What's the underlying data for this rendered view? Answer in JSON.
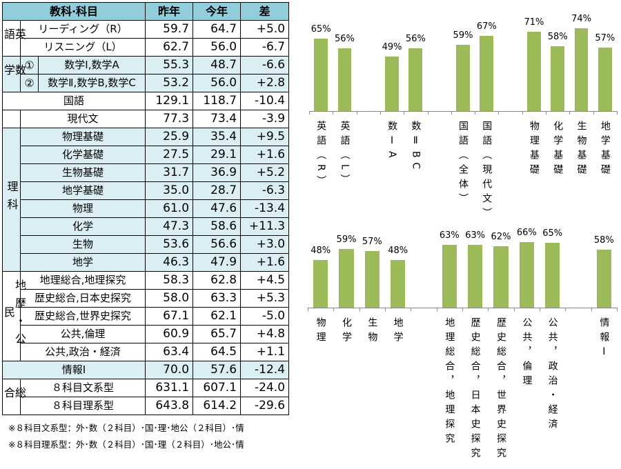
{
  "table": {
    "headers": {
      "subject": "教科·科目",
      "prev": "昨年",
      "curr": "今年",
      "diff": "差"
    },
    "header_fill": "#92CDDC",
    "groups": [
      {
        "label": "英語",
        "fill": "#FFFFFF",
        "rows": [
          {
            "subject": "リーディング（R）",
            "prev": "59.7",
            "curr": "64.7",
            "diff": "+5.0"
          },
          {
            "subject": "リスニング（L）",
            "prev": "62.7",
            "curr": "56.0",
            "diff": "-6.7"
          }
        ]
      },
      {
        "label": "数学",
        "fill": "#DAEEF3",
        "rows": [
          {
            "num": "①",
            "subject": "数学Ⅰ,数学A",
            "prev": "55.3",
            "curr": "48.7",
            "diff": "-6.6"
          },
          {
            "num": "②",
            "subject": "数学Ⅱ,数学B,数学C",
            "prev": "53.2",
            "curr": "56.0",
            "diff": "+2.8"
          }
        ]
      },
      {
        "label": "",
        "fill": "#FFFFFF",
        "rows": [
          {
            "subject": "国語",
            "prev": "129.1",
            "curr": "118.7",
            "diff": "-10.4"
          },
          {
            "subject": "現代文",
            "prev": "77.3",
            "curr": "73.4",
            "diff": "-3.9"
          }
        ]
      },
      {
        "label": "理科",
        "fill": "#DAEEF3",
        "rows": [
          {
            "subject": "物理基礎",
            "prev": "25.9",
            "curr": "35.4",
            "diff": "+9.5"
          },
          {
            "subject": "化学基礎",
            "prev": "27.5",
            "curr": "29.1",
            "diff": "+1.6"
          },
          {
            "subject": "生物基礎",
            "prev": "31.7",
            "curr": "36.9",
            "diff": "+5.2"
          },
          {
            "subject": "地学基礎",
            "prev": "35.0",
            "curr": "28.7",
            "diff": "-6.3"
          },
          {
            "subject": "物理",
            "prev": "61.0",
            "curr": "47.6",
            "diff": "-13.4"
          },
          {
            "subject": "化学",
            "prev": "47.3",
            "curr": "58.6",
            "diff": "+11.3"
          },
          {
            "subject": "生物",
            "prev": "53.6",
            "curr": "56.6",
            "diff": "+3.0"
          },
          {
            "subject": "地学",
            "prev": "46.3",
            "curr": "47.9",
            "diff": "+1.6"
          }
        ]
      },
      {
        "label": "地歴・公民",
        "fill": "#FFFFFF",
        "rows": [
          {
            "subject": "地理総合,地理探究",
            "prev": "58.3",
            "curr": "62.8",
            "diff": "+4.5"
          },
          {
            "subject": "歴史総合,日本史探究",
            "prev": "58.0",
            "curr": "63.3",
            "diff": "+5.3"
          },
          {
            "subject": "歴史総合,世界史探究",
            "prev": "67.1",
            "curr": "62.1",
            "diff": "-5.0"
          },
          {
            "subject": "公共,倫理",
            "prev": "60.9",
            "curr": "65.7",
            "diff": "+4.8"
          },
          {
            "subject": "公共,政治・経済",
            "prev": "63.4",
            "curr": "64.5",
            "diff": "+1.1"
          }
        ]
      },
      {
        "label": "",
        "fill": "#DAEEF3",
        "rows": [
          {
            "subject": "情報Ⅰ",
            "prev": "70.0",
            "curr": "57.6",
            "diff": "-12.4"
          }
        ]
      },
      {
        "label": "総合",
        "fill": "#FFFFFF",
        "rows": [
          {
            "subject": "８科目文系型",
            "prev": "631.1",
            "curr": "607.1",
            "diff": "-24.0"
          },
          {
            "subject": "８科目理系型",
            "prev": "643.8",
            "curr": "614.2",
            "diff": "-29.6"
          }
        ]
      }
    ]
  },
  "notes": [
    "※８科目文系型：外･数（２科目）･国･理･地公（２科目）･情",
    "※８科目理系型：外･数（２科目）･国･理（２科目）･地公･情"
  ],
  "chart_data": [
    {
      "type": "bar",
      "bar_color": "#9BBB59",
      "unit": "%",
      "categories": [
        "英語（R）",
        "英語（L）",
        "",
        "数ⅠA",
        "数ⅡBC",
        "",
        "国語（全体）",
        "国語（現代文）",
        "",
        "物理基礎",
        "化学基礎",
        "生物基礎",
        "地学基礎"
      ],
      "values": [
        65,
        56,
        null,
        49,
        56,
        null,
        59,
        67,
        null,
        71,
        58,
        74,
        57
      ],
      "ylim": [
        0,
        100
      ],
      "grid": false
    },
    {
      "type": "bar",
      "bar_color": "#9BBB59",
      "unit": "%",
      "categories": [
        "物理",
        "化学",
        "生物",
        "地学",
        "",
        "地理総合，地理探究",
        "歴史総合，日本史探究",
        "歴史総合，世界史探究",
        "公共，倫理",
        "公共，政治・経済",
        "",
        "情報Ⅰ"
      ],
      "values": [
        48,
        59,
        57,
        48,
        null,
        63,
        63,
        62,
        66,
        65,
        null,
        58
      ],
      "ylim": [
        0,
        100
      ],
      "grid": false
    }
  ]
}
